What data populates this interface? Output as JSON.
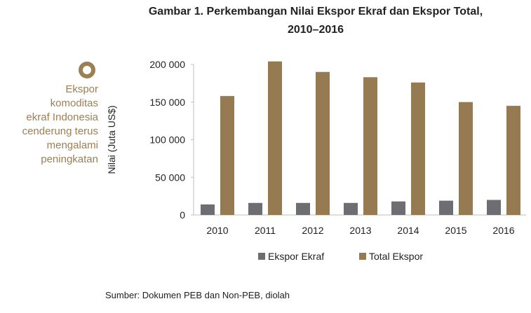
{
  "side_note": {
    "lines": [
      "Ekspor",
      "komoditas",
      "ekraf Indonesia",
      "cenderung terus",
      "mengalami",
      "peningkatan"
    ],
    "accent_color": "#9c7f55"
  },
  "source": "Sumber: Dokumen PEB dan Non-PEB, diolah",
  "chart_data": {
    "type": "bar",
    "title": "Gambar 1. Perkembangan Nilai Ekspor Ekraf dan Ekspor Total, 2010–2016",
    "title_lines": [
      "Gambar 1. Perkembangan Nilai Ekspor Ekraf dan Ekspor Total,",
      "2010–2016"
    ],
    "xlabel": "",
    "ylabel": "Nilai (Juta US$)",
    "categories": [
      "2010",
      "2011",
      "2012",
      "2013",
      "2014",
      "2015",
      "2016"
    ],
    "ylim": [
      0,
      200000
    ],
    "yticks": [
      0,
      50000,
      100000,
      150000,
      200000
    ],
    "ytick_labels": [
      "0",
      "50 000",
      "100 000",
      "150 000",
      "200 000"
    ],
    "grid": false,
    "legend_position": "bottom",
    "series": [
      {
        "name": "Ekspor Ekraf",
        "color": "#6d6e71",
        "values": [
          14000,
          16000,
          16000,
          16000,
          18000,
          19000,
          20000
        ]
      },
      {
        "name": "Total Ekspor",
        "color": "#967b52",
        "values": [
          158000,
          204000,
          190000,
          183000,
          176000,
          150000,
          145000
        ]
      }
    ]
  }
}
